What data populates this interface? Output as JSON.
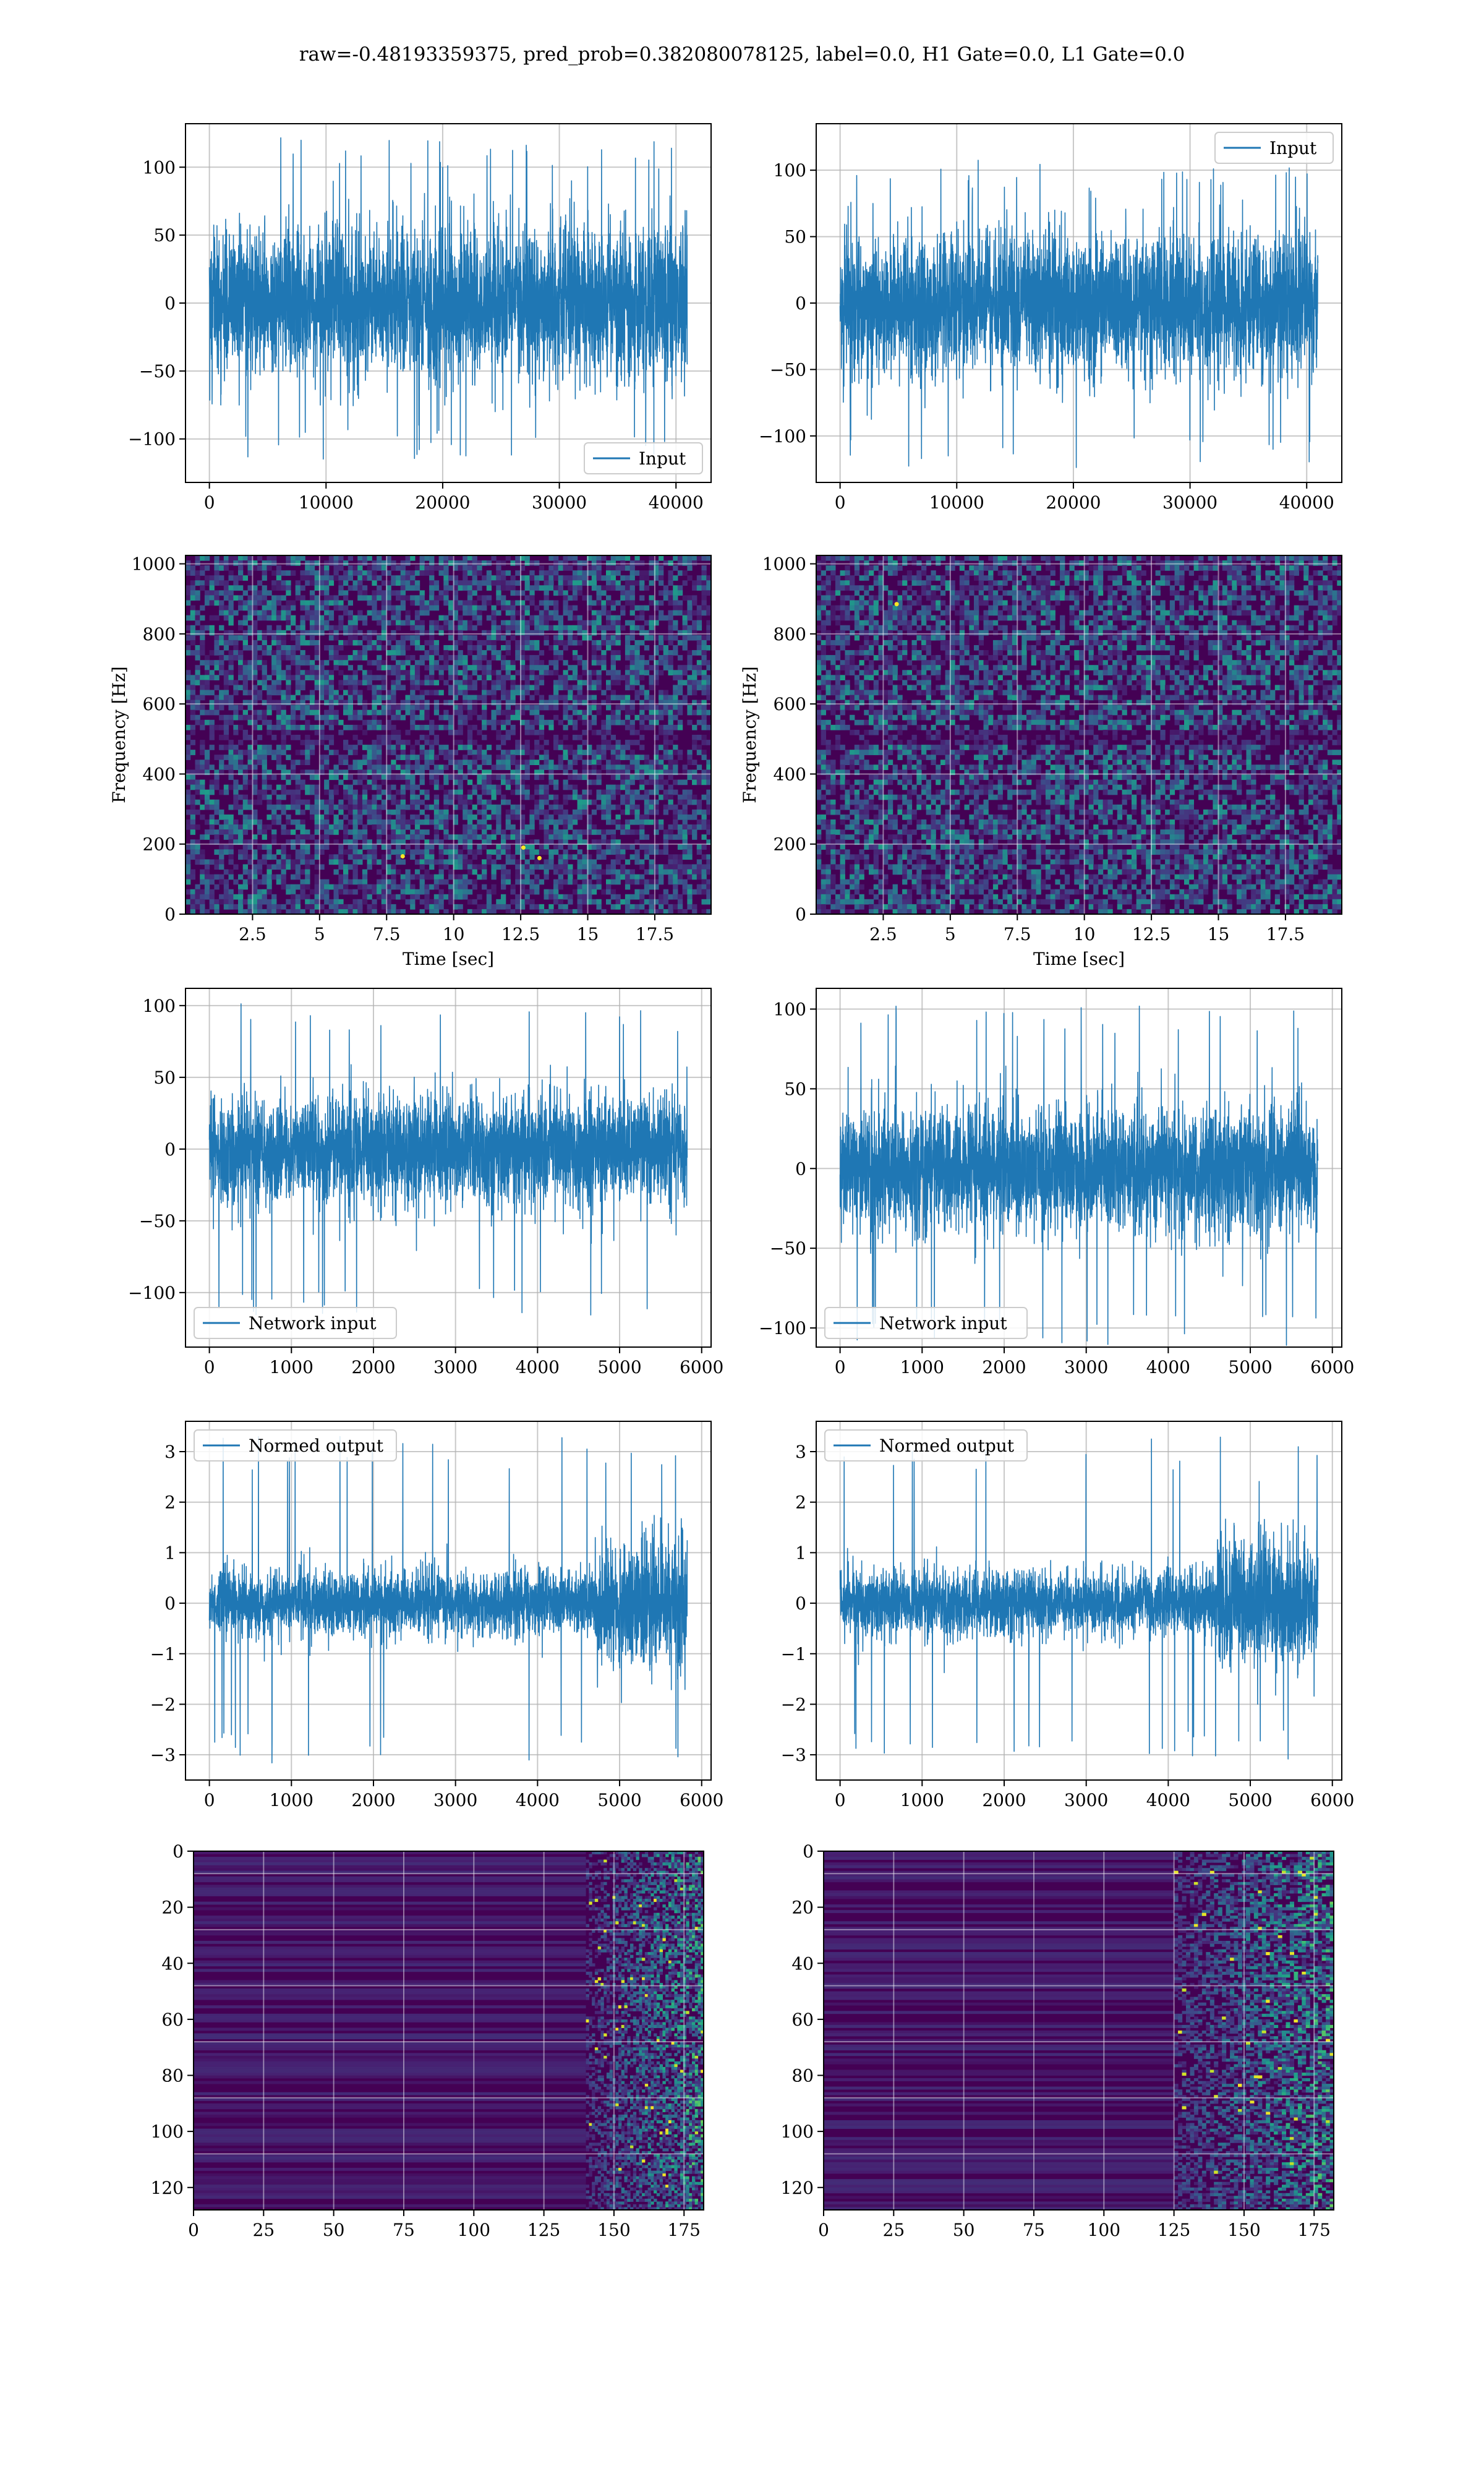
{
  "figure": {
    "suptitle": "raw=-0.48193359375, pred_prob=0.382080078125, label=0.0, H1 Gate=0.0, L1 Gate=0.0"
  },
  "colors": {
    "series": "#1f77b4",
    "grid": "#b0b0b0",
    "spectrogram_bg": "#440154",
    "viridis_mid": "#31688e",
    "viridis_teal": "#21918c",
    "viridis_green": "#5ec962",
    "viridis_yellow": "#fde725"
  },
  "chart_data": [
    {
      "id": "input-h1",
      "type": "line",
      "legend": [
        "Input"
      ],
      "legend_loc": "lower-right",
      "series": [
        {
          "name": "Input",
          "n_points": 40960,
          "mean": 0,
          "envelope_min": -115,
          "envelope_max": 122,
          "typical_amplitude": 65
        }
      ],
      "xlim": [
        -2048,
        43008
      ],
      "ylim": [
        -132,
        132
      ],
      "xticks": [
        0,
        10000,
        20000,
        30000,
        40000
      ],
      "yticks": [
        -100,
        -50,
        0,
        50,
        100
      ],
      "xlabel": "",
      "ylabel": "",
      "grid": true
    },
    {
      "id": "input-l1",
      "type": "line",
      "legend": [
        "Input"
      ],
      "legend_loc": "upper-right",
      "series": [
        {
          "name": "Input",
          "n_points": 40960,
          "mean": 0,
          "envelope_min": -125,
          "envelope_max": 108,
          "typical_amplitude": 62
        }
      ],
      "xlim": [
        -2048,
        43008
      ],
      "ylim": [
        -135,
        135
      ],
      "xticks": [
        0,
        10000,
        20000,
        30000,
        40000
      ],
      "yticks": [
        -100,
        -50,
        0,
        50,
        100
      ],
      "xlabel": "",
      "ylabel": "",
      "grid": true
    },
    {
      "id": "spectrogram-h1",
      "type": "heatmap",
      "xlabel": "Time [sec]",
      "ylabel": "Frequency [Hz]",
      "xlim": [
        0,
        19.6
      ],
      "ylim": [
        0,
        1024
      ],
      "xticks": [
        2.5,
        5.0,
        7.5,
        10.0,
        12.5,
        15.0,
        17.5
      ],
      "yticks": [
        0,
        200,
        400,
        600,
        800,
        1000
      ],
      "colormap": "viridis",
      "grid": true,
      "highlights": [
        {
          "t": 13.2,
          "f": 160
        },
        {
          "t": 8.1,
          "f": 165
        },
        {
          "t": 12.6,
          "f": 190
        }
      ]
    },
    {
      "id": "spectrogram-l1",
      "type": "heatmap",
      "xlabel": "Time [sec]",
      "ylabel": "Frequency [Hz]",
      "xlim": [
        0,
        19.6
      ],
      "ylim": [
        0,
        1024
      ],
      "xticks": [
        2.5,
        5.0,
        7.5,
        10.0,
        12.5,
        15.0,
        17.5
      ],
      "yticks": [
        0,
        200,
        400,
        600,
        800,
        1000
      ],
      "colormap": "viridis",
      "grid": true,
      "highlights": [
        {
          "t": 3.0,
          "f": 885
        }
      ]
    },
    {
      "id": "network-input-h1",
      "type": "line",
      "legend": [
        "Network input"
      ],
      "legend_loc": "lower-left",
      "series": [
        {
          "name": "Network input",
          "n_points": 5824,
          "mean": 0,
          "envelope_min": -120,
          "envelope_max": 102,
          "typical_amplitude": 45
        }
      ],
      "xlim": [
        -291,
        6115
      ],
      "ylim": [
        -138,
        112
      ],
      "xticks": [
        0,
        1000,
        2000,
        3000,
        4000,
        5000,
        6000
      ],
      "yticks": [
        -100,
        -50,
        0,
        50,
        100
      ],
      "xlabel": "",
      "ylabel": "",
      "grid": true
    },
    {
      "id": "network-input-l1",
      "type": "line",
      "legend": [
        "Network input"
      ],
      "legend_loc": "lower-left",
      "series": [
        {
          "name": "Network input",
          "n_points": 5824,
          "mean": 0,
          "envelope_min": -112,
          "envelope_max": 103,
          "typical_amplitude": 45
        }
      ],
      "xlim": [
        -291,
        6115
      ],
      "ylim": [
        -112,
        113
      ],
      "xticks": [
        0,
        1000,
        2000,
        3000,
        4000,
        5000,
        6000
      ],
      "yticks": [
        -100,
        -50,
        0,
        50,
        100
      ],
      "xlabel": "",
      "ylabel": "",
      "grid": true
    },
    {
      "id": "normed-output-h1",
      "type": "line",
      "legend": [
        "Normed output"
      ],
      "legend_loc": "upper-left",
      "series": [
        {
          "name": "Normed output",
          "n_points": 5824,
          "mean": 0,
          "envelope_min": -3.2,
          "envelope_max": 3.3,
          "typical_amplitude": 0.75,
          "high_variance_from_x": 4700
        }
      ],
      "xlim": [
        -291,
        6115
      ],
      "ylim": [
        -3.5,
        3.6
      ],
      "xticks": [
        0,
        1000,
        2000,
        3000,
        4000,
        5000,
        6000
      ],
      "yticks": [
        -3,
        -2,
        -1,
        0,
        1,
        2,
        3
      ],
      "xlabel": "",
      "ylabel": "",
      "grid": true
    },
    {
      "id": "normed-output-l1",
      "type": "line",
      "legend": [
        "Normed output"
      ],
      "legend_loc": "upper-left",
      "series": [
        {
          "name": "Normed output",
          "n_points": 5824,
          "mean": 0,
          "envelope_min": -3.1,
          "envelope_max": 3.3,
          "typical_amplitude": 0.75,
          "high_variance_from_x": 4600
        }
      ],
      "xlim": [
        -291,
        6115
      ],
      "ylim": [
        -3.5,
        3.6
      ],
      "xticks": [
        0,
        1000,
        2000,
        3000,
        4000,
        5000,
        6000
      ],
      "yticks": [
        -3,
        -2,
        -1,
        0,
        1,
        2,
        3
      ],
      "xlabel": "",
      "ylabel": "",
      "grid": true
    },
    {
      "id": "feature-map-h1",
      "type": "heatmap",
      "colormap": "viridis",
      "grid": true,
      "xlim": [
        0,
        182
      ],
      "ylim": [
        128,
        0
      ],
      "xticks": [
        0,
        25,
        50,
        75,
        100,
        125,
        150,
        175
      ],
      "yticks": [
        0,
        20,
        40,
        60,
        80,
        100,
        120
      ],
      "active_from_x": 140,
      "xlabel": "",
      "ylabel": ""
    },
    {
      "id": "feature-map-l1",
      "type": "heatmap",
      "colormap": "viridis",
      "grid": true,
      "xlim": [
        0,
        182
      ],
      "ylim": [
        128,
        0
      ],
      "xticks": [
        0,
        25,
        50,
        75,
        100,
        125,
        150,
        175
      ],
      "yticks": [
        0,
        20,
        40,
        60,
        80,
        100,
        120
      ],
      "active_from_x": 125,
      "xlabel": "",
      "ylabel": ""
    }
  ]
}
